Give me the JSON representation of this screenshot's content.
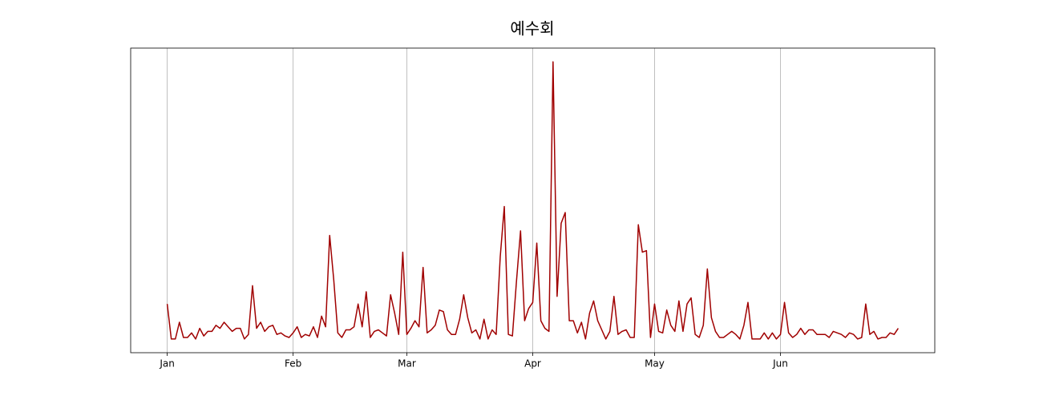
{
  "chart_data": {
    "type": "line",
    "title": "예수회",
    "x": [
      0,
      1,
      2,
      3,
      4,
      5,
      6,
      7,
      8,
      9,
      10,
      11,
      12,
      13,
      14,
      15,
      16,
      17,
      18,
      19,
      20,
      21,
      22,
      23,
      24,
      25,
      26,
      27,
      28,
      29,
      30,
      31,
      32,
      33,
      34,
      35,
      36,
      37,
      38,
      39,
      40,
      41,
      42,
      43,
      44,
      45,
      46,
      47,
      48,
      49,
      50,
      51,
      52,
      53,
      54,
      55,
      56,
      57,
      58,
      59,
      60,
      61,
      62,
      63,
      64,
      65,
      66,
      67,
      68,
      69,
      70,
      71,
      72,
      73,
      74,
      75,
      76,
      77,
      78,
      79,
      80,
      81,
      82,
      83,
      84,
      85,
      86,
      87,
      88,
      89,
      90,
      91,
      92,
      93,
      94,
      95,
      96,
      97,
      98,
      99,
      100,
      101,
      102,
      103,
      104,
      105,
      106,
      107,
      108,
      109,
      110,
      111,
      112,
      113,
      114,
      115,
      116,
      117,
      118,
      119,
      120,
      121,
      122,
      123,
      124,
      125,
      126,
      127,
      128,
      129,
      130,
      131,
      132,
      133,
      134,
      135,
      136,
      137,
      138,
      139,
      140,
      141,
      142,
      143,
      144,
      145,
      146,
      147,
      148,
      149,
      150,
      151,
      152,
      153,
      154,
      155,
      156,
      157,
      158,
      159,
      160,
      161,
      162,
      163,
      164,
      165,
      166,
      167,
      168,
      169,
      170,
      171,
      172,
      173,
      174,
      175,
      176,
      177,
      178,
      179,
      180
    ],
    "series": [
      {
        "color": "#a00000",
        "values": [
          16,
          4.5,
          4.5,
          10,
          5,
          5,
          6.5,
          4.5,
          8,
          5.5,
          7,
          7,
          9,
          8,
          10,
          8.5,
          7,
          8,
          8,
          4.5,
          6,
          22,
          8,
          10,
          7,
          8.5,
          9,
          6,
          6.5,
          5.5,
          5,
          6.5,
          8.5,
          5,
          6,
          5.5,
          8.5,
          5,
          12,
          8.5,
          38.5,
          24,
          6.5,
          5,
          7.5,
          7.5,
          8.5,
          16,
          8.5,
          20,
          5,
          7,
          7.5,
          6.5,
          5.5,
          19,
          13,
          6,
          33,
          6,
          8,
          10.5,
          8.5,
          28,
          6.5,
          7.5,
          9,
          14,
          13.5,
          7.5,
          6,
          6,
          11,
          19,
          11.5,
          6.5,
          7.5,
          4.5,
          11,
          4.5,
          7.5,
          6,
          31.5,
          48,
          6,
          5.5,
          23.5,
          40,
          10.5,
          14.5,
          16.5,
          36,
          10.5,
          8,
          7,
          95.5,
          18.5,
          42.5,
          46,
          10.5,
          10.5,
          6.5,
          10,
          4.5,
          13,
          17,
          10.5,
          7.5,
          4.5,
          7,
          18.5,
          6,
          7,
          7.5,
          5,
          5,
          42,
          33,
          33.5,
          5,
          16,
          7,
          6.5,
          14,
          9,
          7,
          17,
          7,
          16,
          18,
          6,
          5,
          9,
          27.5,
          11.5,
          7,
          5,
          5,
          6,
          7,
          6,
          4.5,
          9,
          16.5,
          4.5,
          4.5,
          4.5,
          6.5,
          4.5,
          6.5,
          4.5,
          6,
          16.5,
          6.5,
          5,
          6,
          8,
          6,
          7.5,
          7.5,
          6,
          6,
          6,
          5,
          7,
          6.5,
          6,
          5,
          6.5,
          6,
          4.5,
          5,
          16,
          6,
          7,
          4.5,
          5,
          5,
          6.5,
          6,
          8
        ]
      }
    ],
    "xlim": [
      -9,
      189
    ],
    "ylim": [
      0,
      100
    ],
    "xticks": [
      {
        "value": 0,
        "label": "Jan"
      },
      {
        "value": 31,
        "label": "Feb"
      },
      {
        "value": 59,
        "label": "Mar"
      },
      {
        "value": 90,
        "label": "Apr"
      },
      {
        "value": 120,
        "label": "May"
      },
      {
        "value": 151,
        "label": "Jun"
      }
    ],
    "grid": true
  }
}
